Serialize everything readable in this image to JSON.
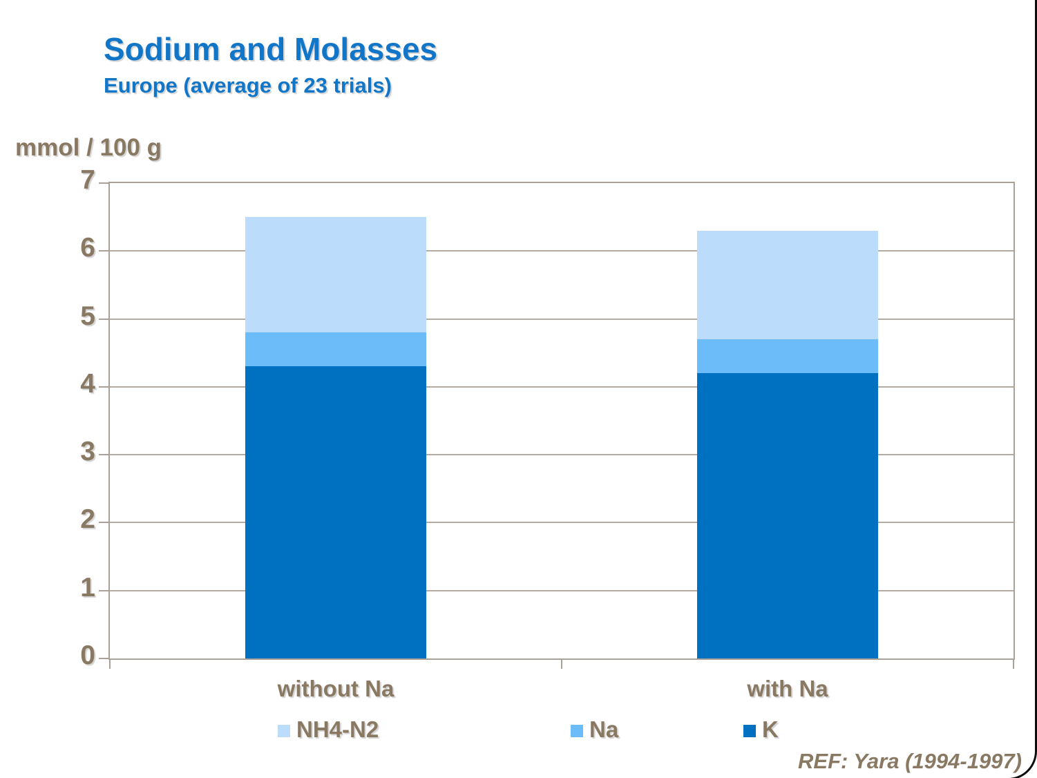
{
  "slide": {
    "title": "Sodium and Molasses",
    "subtitle": "Europe (average of 23 trials)",
    "y_axis_unit": "mmol / 100 g",
    "reference": "REF: Yara (1994-1997)"
  },
  "colors": {
    "title_blue": "#1276C8",
    "text_brown": "#8A7962",
    "plot_border": "#A9A098",
    "gridline": "#B3AAA1",
    "frame_black": "#0d0d0d"
  },
  "chart_data": {
    "type": "bar",
    "stacked": true,
    "title": "Sodium and Molasses",
    "subtitle": "Europe (average of 23 trials)",
    "ylabel": "mmol / 100 g",
    "xlabel": "",
    "ylim": [
      0,
      7
    ],
    "ytick_step": 1,
    "grid": true,
    "legend_position": "bottom",
    "categories": [
      "without Na",
      "with Na"
    ],
    "series": [
      {
        "name": "K",
        "color": "#0071C0",
        "values": [
          4.3,
          4.2
        ]
      },
      {
        "name": "Na",
        "color": "#6DBCFA",
        "values": [
          0.5,
          0.5
        ]
      },
      {
        "name": "NH4-N2",
        "color": "#BBDDFB",
        "values": [
          1.7,
          1.6
        ]
      }
    ],
    "stack_totals": [
      6.5,
      6.3
    ],
    "legend": [
      {
        "label": "NH4-N2",
        "color": "#BBDDFB"
      },
      {
        "label": "Na",
        "color": "#6DBCFA"
      },
      {
        "label": "K",
        "color": "#0071C0"
      }
    ]
  }
}
